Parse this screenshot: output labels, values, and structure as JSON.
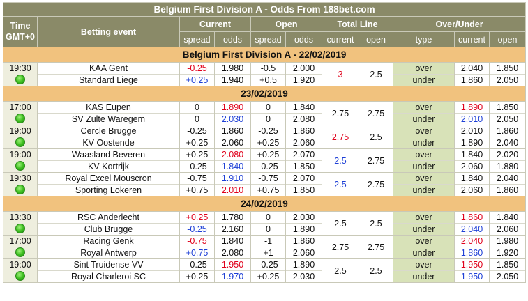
{
  "title": "Belgium First Division A - Odds From 188bet.com",
  "headers": {
    "time": [
      "Time",
      "GMT+0"
    ],
    "event": "Betting event",
    "current": "Current",
    "open": "Open",
    "total_line": "Total Line",
    "over_under": "Over/Under",
    "spread": "spread",
    "odds": "odds",
    "tl_current": "current",
    "tl_open": "open",
    "type": "type",
    "ou_current": "current",
    "ou_open": "open"
  },
  "sections": [
    {
      "label": "Belgium First Division A - 22/02/2019",
      "matches": [
        {
          "time": "19:30",
          "home": "KAA Gent",
          "away": "Standard Liege",
          "cur_spread": [
            "-0.25",
            "+0.25"
          ],
          "cur_spread_color": [
            "red",
            "blue"
          ],
          "cur_odds": [
            "1.980",
            "1.940"
          ],
          "cur_odds_color": [
            "",
            ""
          ],
          "open_spread": [
            "-0.5",
            "+0.5"
          ],
          "open_odds": [
            "2.000",
            "1.920"
          ],
          "tl_current": "3",
          "tl_current_color": "red",
          "tl_open": "2.5",
          "ou_type": [
            "over",
            "under"
          ],
          "ou_current": [
            "2.040",
            "1.860"
          ],
          "ou_current_color": [
            "",
            ""
          ],
          "ou_open": [
            "1.850",
            "2.050"
          ]
        }
      ]
    },
    {
      "label": "23/02/2019",
      "matches": [
        {
          "time": "17:00",
          "home": "KAS Eupen",
          "away": "SV Zulte Waregem",
          "cur_spread": [
            "0",
            "0"
          ],
          "cur_spread_color": [
            "",
            ""
          ],
          "cur_odds": [
            "1.890",
            "2.030"
          ],
          "cur_odds_color": [
            "red",
            "blue"
          ],
          "open_spread": [
            "0",
            "0"
          ],
          "open_odds": [
            "1.840",
            "2.080"
          ],
          "tl_current": "2.75",
          "tl_current_color": "",
          "tl_open": "2.75",
          "ou_type": [
            "over",
            "under"
          ],
          "ou_current": [
            "1.890",
            "2.010"
          ],
          "ou_current_color": [
            "red",
            "blue"
          ],
          "ou_open": [
            "1.850",
            "2.050"
          ]
        },
        {
          "time": "19:00",
          "home": "Cercle Brugge",
          "away": "KV Oostende",
          "cur_spread": [
            "-0.25",
            "+0.25"
          ],
          "cur_spread_color": [
            "",
            ""
          ],
          "cur_odds": [
            "1.860",
            "2.060"
          ],
          "cur_odds_color": [
            "",
            ""
          ],
          "open_spread": [
            "-0.25",
            "+0.25"
          ],
          "open_odds": [
            "1.860",
            "2.060"
          ],
          "tl_current": "2.75",
          "tl_current_color": "red",
          "tl_open": "2.5",
          "ou_type": [
            "over",
            "under"
          ],
          "ou_current": [
            "2.010",
            "1.890"
          ],
          "ou_current_color": [
            "",
            ""
          ],
          "ou_open": [
            "1.860",
            "2.040"
          ]
        },
        {
          "time": "19:00",
          "home": "Waasland Beveren",
          "away": "KV Kortrijk",
          "cur_spread": [
            "+0.25",
            "-0.25"
          ],
          "cur_spread_color": [
            "",
            ""
          ],
          "cur_odds": [
            "2.080",
            "1.840"
          ],
          "cur_odds_color": [
            "red",
            "blue"
          ],
          "open_spread": [
            "+0.25",
            "-0.25"
          ],
          "open_odds": [
            "2.070",
            "1.850"
          ],
          "tl_current": "2.5",
          "tl_current_color": "blue",
          "tl_open": "2.75",
          "ou_type": [
            "over",
            "under"
          ],
          "ou_current": [
            "1.840",
            "2.060"
          ],
          "ou_current_color": [
            "",
            ""
          ],
          "ou_open": [
            "2.020",
            "1.880"
          ]
        },
        {
          "time": "19:30",
          "home": "Royal Excel Mouscron",
          "away": "Sporting Lokeren",
          "cur_spread": [
            "-0.75",
            "+0.75"
          ],
          "cur_spread_color": [
            "",
            ""
          ],
          "cur_odds": [
            "1.910",
            "2.010"
          ],
          "cur_odds_color": [
            "blue",
            "red"
          ],
          "open_spread": [
            "-0.75",
            "+0.75"
          ],
          "open_odds": [
            "2.070",
            "1.850"
          ],
          "tl_current": "2.5",
          "tl_current_color": "blue",
          "tl_open": "2.75",
          "ou_type": [
            "over",
            "under"
          ],
          "ou_current": [
            "1.840",
            "2.060"
          ],
          "ou_current_color": [
            "",
            ""
          ],
          "ou_open": [
            "2.040",
            "1.860"
          ]
        }
      ]
    },
    {
      "label": "24/02/2019",
      "matches": [
        {
          "time": "13:30",
          "home": "RSC Anderlecht",
          "away": "Club Brugge",
          "cur_spread": [
            "+0.25",
            "-0.25"
          ],
          "cur_spread_color": [
            "red",
            "blue"
          ],
          "cur_odds": [
            "1.780",
            "2.160"
          ],
          "cur_odds_color": [
            "",
            ""
          ],
          "open_spread": [
            "0",
            "0"
          ],
          "open_odds": [
            "2.030",
            "1.890"
          ],
          "tl_current": "2.5",
          "tl_current_color": "",
          "tl_open": "2.5",
          "ou_type": [
            "over",
            "under"
          ],
          "ou_current": [
            "1.860",
            "2.040"
          ],
          "ou_current_color": [
            "red",
            "blue"
          ],
          "ou_open": [
            "1.840",
            "2.060"
          ]
        },
        {
          "time": "17:00",
          "home": "Racing Genk",
          "away": "Royal Antwerp",
          "cur_spread": [
            "-0.75",
            "+0.75"
          ],
          "cur_spread_color": [
            "red",
            "blue"
          ],
          "cur_odds": [
            "1.840",
            "2.080"
          ],
          "cur_odds_color": [
            "",
            ""
          ],
          "open_spread": [
            "-1",
            "+1"
          ],
          "open_odds": [
            "1.860",
            "2.060"
          ],
          "tl_current": "2.75",
          "tl_current_color": "",
          "tl_open": "2.75",
          "ou_type": [
            "over",
            "under"
          ],
          "ou_current": [
            "2.040",
            "1.860"
          ],
          "ou_current_color": [
            "red",
            "blue"
          ],
          "ou_open": [
            "1.980",
            "1.920"
          ]
        },
        {
          "time": "19:00",
          "home": "Sint Truidense VV",
          "away": "Royal Charleroi SC",
          "cur_spread": [
            "-0.25",
            "+0.25"
          ],
          "cur_spread_color": [
            "",
            ""
          ],
          "cur_odds": [
            "1.950",
            "1.970"
          ],
          "cur_odds_color": [
            "red",
            "blue"
          ],
          "open_spread": [
            "-0.25",
            "+0.25"
          ],
          "open_odds": [
            "1.890",
            "2.030"
          ],
          "tl_current": "2.5",
          "tl_current_color": "",
          "tl_open": "2.5",
          "ou_type": [
            "over",
            "under"
          ],
          "ou_current": [
            "1.950",
            "1.950"
          ],
          "ou_current_color": [
            "red",
            "blue"
          ],
          "ou_open": [
            "1.850",
            "2.050"
          ]
        }
      ]
    }
  ]
}
